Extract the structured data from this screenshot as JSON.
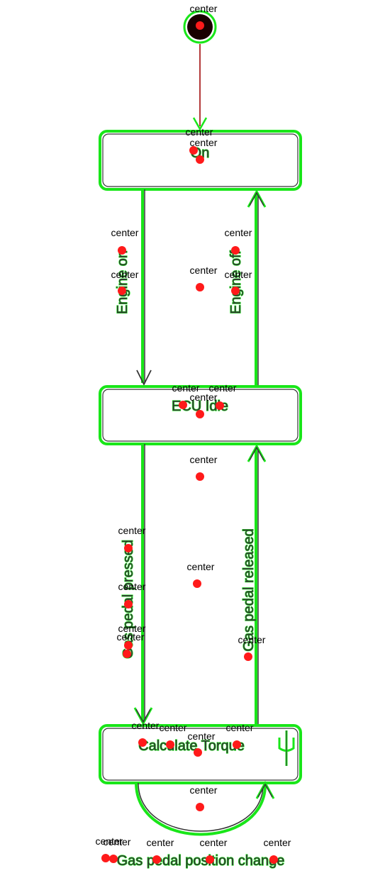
{
  "tag": "center",
  "colors": {
    "outline": "#19e619",
    "marker": "#ff1a1a",
    "line": "#333333",
    "init_line": "#b33a3a"
  },
  "states": {
    "on": {
      "label": "On"
    },
    "ecu_idle": {
      "label": "ECU Idle"
    },
    "calc": {
      "label": "Calculate Torque"
    }
  },
  "transitions": {
    "engine_on": "Engine on",
    "engine_off": "Engine off",
    "gas_pressed": "Gas pedal pressed",
    "gas_released": "Gas pedal released",
    "gas_change": "Gas pedal position change"
  },
  "icons": [
    "initial-node-icon",
    "fork-symbol-icon"
  ]
}
